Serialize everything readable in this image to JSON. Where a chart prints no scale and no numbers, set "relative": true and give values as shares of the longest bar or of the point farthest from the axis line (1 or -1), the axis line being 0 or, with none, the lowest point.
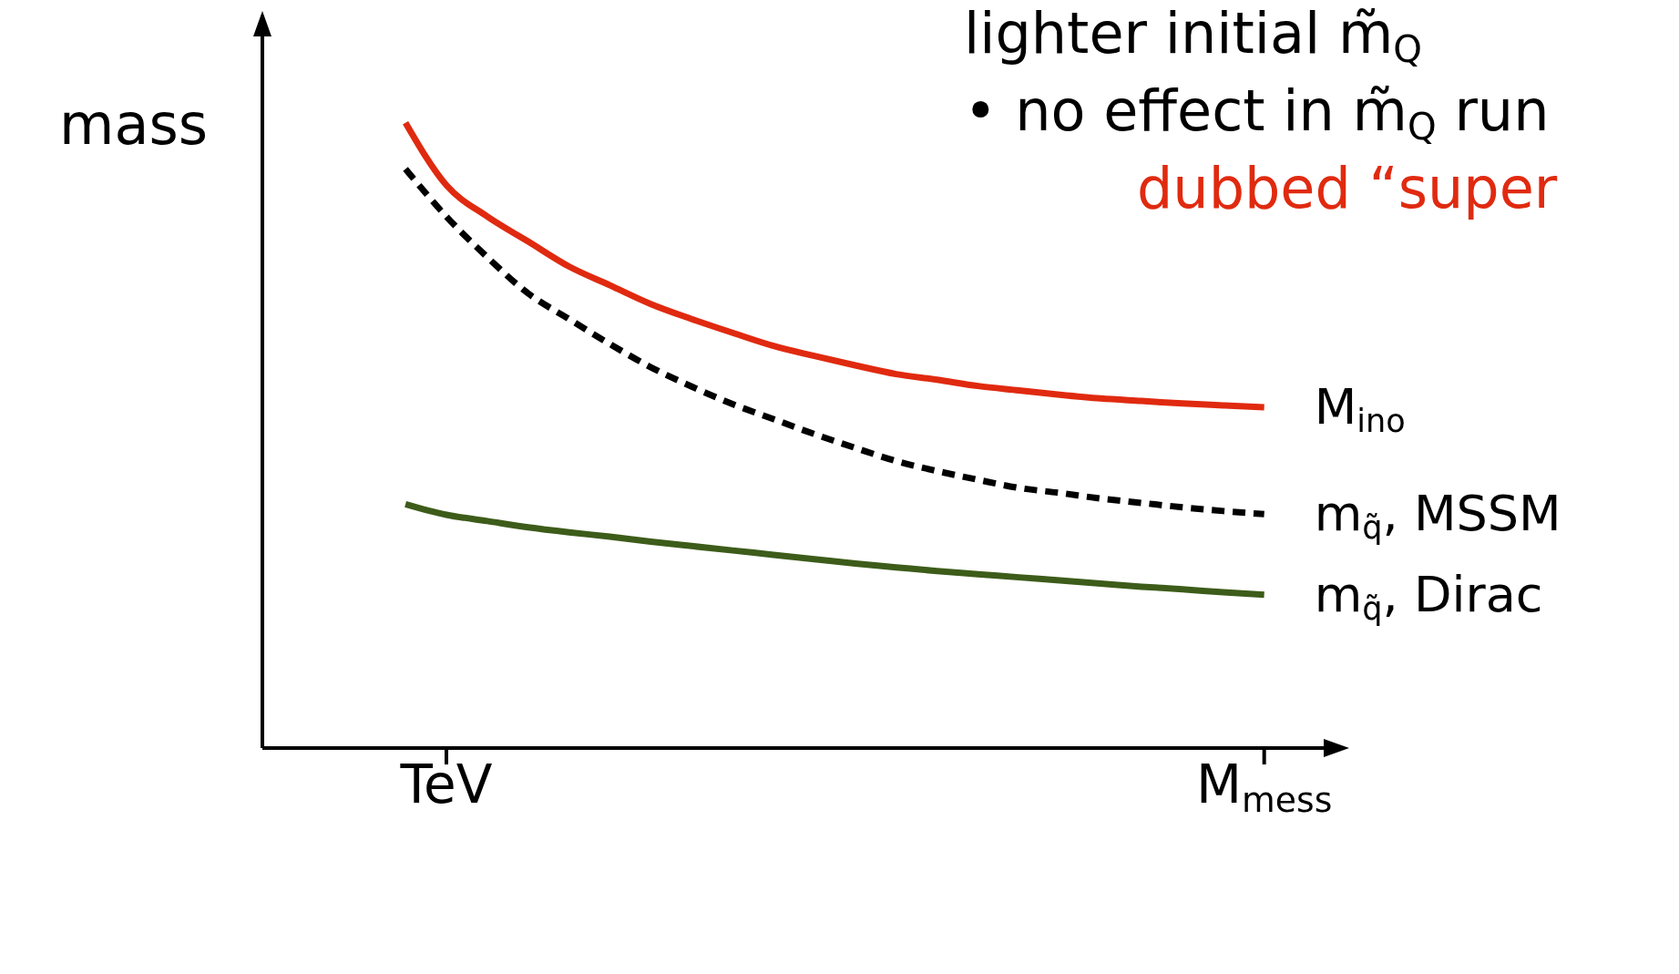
{
  "chart_data": {
    "type": "line",
    "relative": true,
    "ylabel": "mass",
    "annotations": [
      "lighter initial m̃$_{Q}$",
      "• no effect in m̃$_{Q}$ run",
      "dubbed “super"
    ],
    "categories": [
      null,
      "TeV",
      null,
      null,
      null,
      null,
      null,
      null,
      null,
      null,
      null,
      null,
      null,
      null,
      null,
      null,
      null,
      null,
      null,
      null,
      null,
      "M$_{mess}$"
    ],
    "series": [
      {
        "name": "M$_{ino}$",
        "color": "#e02a10",
        "line_style": "solid",
        "values": [
          1.0,
          0.9,
          0.85,
          0.81,
          0.77,
          0.74,
          0.71,
          0.686,
          0.664,
          0.643,
          0.627,
          0.612,
          0.598,
          0.589,
          0.579,
          0.572,
          0.565,
          0.559,
          0.555,
          0.551,
          0.548,
          0.545
        ]
      },
      {
        "name": "m$_{q̃}$, MSSM",
        "color": "#000000",
        "line_style": "dashed",
        "values": [
          0.926,
          0.85,
          0.785,
          0.727,
          0.686,
          0.646,
          0.609,
          0.578,
          0.55,
          0.526,
          0.502,
          0.48,
          0.459,
          0.443,
          0.429,
          0.416,
          0.408,
          0.399,
          0.392,
          0.385,
          0.379,
          0.374
        ]
      },
      {
        "name": "m$_{q̃}$, Dirac",
        "color": "#3d5c1a",
        "line_style": "solid",
        "values": [
          0.39,
          0.373,
          0.363,
          0.353,
          0.345,
          0.338,
          0.33,
          0.323,
          0.316,
          0.309,
          0.302,
          0.295,
          0.289,
          0.283,
          0.278,
          0.273,
          0.268,
          0.263,
          0.258,
          0.254,
          0.249,
          0.245
        ]
      }
    ]
  }
}
